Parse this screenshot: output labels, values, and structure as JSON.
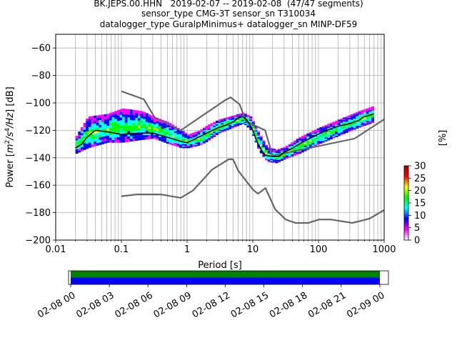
{
  "figure": {
    "title_lines": [
      "BK.JEPS.00.HHN   2019-02-07 -- 2019-02-08  (47/47 segments)",
      "sensor_type CMG-3T sensor_sn T310034",
      "datalogger_type GuralpMinimus+ datalogger_sn MINP-DF59"
    ]
  },
  "chart_data": [
    {
      "type": "heatmap",
      "xlabel": "Period [s]",
      "ylabel_parts": [
        "Power [",
        "m",
        "2",
        "/s",
        "4",
        "/Hz",
        "] [dB]"
      ],
      "xscale": "log",
      "xlim": [
        0.01,
        1000
      ],
      "ylim": [
        -200,
        -50
      ],
      "x_ticks": [
        {
          "v": 0.01,
          "label": "0.01"
        },
        {
          "v": 0.1,
          "label": "0.1"
        },
        {
          "v": 1,
          "label": "1"
        },
        {
          "v": 10,
          "label": "10"
        },
        {
          "v": 100,
          "label": "100"
        },
        {
          "v": 1000,
          "label": "1000"
        }
      ],
      "y_ticks": [
        {
          "v": -60,
          "label": "−60"
        },
        {
          "v": -80,
          "label": "−80"
        },
        {
          "v": -100,
          "label": "−100"
        },
        {
          "v": -120,
          "label": "−120"
        },
        {
          "v": -140,
          "label": "−140"
        },
        {
          "v": -160,
          "label": "−160"
        },
        {
          "v": -180,
          "label": "−180"
        },
        {
          "v": -200,
          "label": "−200"
        }
      ],
      "grid": true,
      "noise_models": [
        {
          "color": "#666666",
          "points": [
            [
              0.1,
              -91.5
            ],
            [
              0.22,
              -97.4
            ],
            [
              0.32,
              -110.5
            ],
            [
              0.8,
              -120.0
            ],
            [
              3.8,
              -98.0
            ],
            [
              4.6,
              -96.0
            ],
            [
              6.3,
              -101.0
            ],
            [
              7.9,
              -113.5
            ],
            [
              15.4,
              -120.0
            ],
            [
              20,
              -138.5
            ],
            [
              354.8,
              -126.0
            ],
            [
              1000,
              -112.0
            ]
          ]
        },
        {
          "color": "#666666",
          "points": [
            [
              0.1,
              -168.0
            ],
            [
              0.17,
              -166.7
            ],
            [
              0.4,
              -166.7
            ],
            [
              0.8,
              -169.2
            ],
            [
              1.24,
              -163.7
            ],
            [
              2.4,
              -148.6
            ],
            [
              4.3,
              -141.1
            ],
            [
              5.0,
              -141.1
            ],
            [
              6.0,
              -149.4
            ],
            [
              10.0,
              -163.1
            ],
            [
              12.0,
              -166.2
            ],
            [
              15.6,
              -162.1
            ],
            [
              21.9,
              -177.5
            ],
            [
              31.6,
              -185.0
            ],
            [
              45.0,
              -187.5
            ],
            [
              70.0,
              -187.5
            ],
            [
              101.0,
              -185.0
            ],
            [
              154.0,
              -185.0
            ],
            [
              328.0,
              -187.5
            ],
            [
              600.0,
              -184.4
            ],
            [
              1000.0,
              -178.0
            ]
          ]
        }
      ],
      "mean_curve": {
        "color": "#000000",
        "points": [
          [
            0.02,
            -133
          ],
          [
            0.025,
            -130
          ],
          [
            0.03,
            -125
          ],
          [
            0.04,
            -120
          ],
          [
            0.06,
            -121
          ],
          [
            0.1,
            -123
          ],
          [
            0.2,
            -122
          ],
          [
            0.3,
            -122
          ],
          [
            0.5,
            -125
          ],
          [
            0.8,
            -128
          ],
          [
            1.0,
            -129
          ],
          [
            1.5,
            -125
          ],
          [
            2.0,
            -122
          ],
          [
            3.0,
            -118
          ],
          [
            4.0,
            -116
          ],
          [
            5.0,
            -114
          ],
          [
            6.0,
            -111
          ],
          [
            7.0,
            -110
          ],
          [
            8.0,
            -112
          ],
          [
            9.0,
            -116
          ],
          [
            10.0,
            -120
          ],
          [
            12.0,
            -130
          ],
          [
            15.0,
            -138
          ],
          [
            20.0,
            -139
          ],
          [
            25.0,
            -139
          ],
          [
            30.0,
            -136
          ],
          [
            40.0,
            -133
          ],
          [
            60.0,
            -128
          ],
          [
            80.0,
            -125
          ],
          [
            120.0,
            -121
          ],
          [
            200.0,
            -117
          ],
          [
            300.0,
            -115
          ],
          [
            400.0,
            -113
          ],
          [
            500.0,
            -110
          ],
          [
            700.0,
            -108
          ]
        ]
      },
      "density_band": [
        {
          "x": 0.02,
          "lo": -137,
          "hi": -124
        },
        {
          "x": 0.03,
          "lo": -133,
          "hi": -110
        },
        {
          "x": 0.06,
          "lo": -129,
          "hi": -108
        },
        {
          "x": 0.1,
          "lo": -129,
          "hi": -104
        },
        {
          "x": 0.2,
          "lo": -127,
          "hi": -106
        },
        {
          "x": 0.3,
          "lo": -126,
          "hi": -110
        },
        {
          "x": 0.5,
          "lo": -130,
          "hi": -114
        },
        {
          "x": 0.8,
          "lo": -133,
          "hi": -120
        },
        {
          "x": 1.0,
          "lo": -133,
          "hi": -123
        },
        {
          "x": 1.5,
          "lo": -131,
          "hi": -120
        },
        {
          "x": 2.0,
          "lo": -128,
          "hi": -116
        },
        {
          "x": 3.0,
          "lo": -122,
          "hi": -112
        },
        {
          "x": 5.0,
          "lo": -118,
          "hi": -109
        },
        {
          "x": 7.0,
          "lo": -115,
          "hi": -107
        },
        {
          "x": 9.0,
          "lo": -120,
          "hi": -110
        },
        {
          "x": 12.0,
          "lo": -135,
          "hi": -122
        },
        {
          "x": 16.0,
          "lo": -143,
          "hi": -132
        },
        {
          "x": 22.0,
          "lo": -144,
          "hi": -134
        },
        {
          "x": 30.0,
          "lo": -141,
          "hi": -132
        },
        {
          "x": 50.0,
          "lo": -137,
          "hi": -125
        },
        {
          "x": 100.0,
          "lo": -130,
          "hi": -118
        },
        {
          "x": 200.0,
          "lo": -124,
          "hi": -112
        },
        {
          "x": 400.0,
          "lo": -118,
          "hi": -106
        },
        {
          "x": 700.0,
          "lo": -114,
          "hi": -102
        }
      ],
      "colorbar": {
        "label": "[%]",
        "range": [
          0,
          30
        ],
        "ticks": [
          {
            "v": 0,
            "label": "0"
          },
          {
            "v": 5,
            "label": "5"
          },
          {
            "v": 10,
            "label": "10"
          },
          {
            "v": 15,
            "label": "15"
          },
          {
            "v": 20,
            "label": "20"
          },
          {
            "v": 25,
            "label": "25"
          },
          {
            "v": 30,
            "label": "30"
          }
        ],
        "colors": [
          "#ffffff",
          "#ff00ff",
          "#0000ff",
          "#00ffff",
          "#00ff00",
          "#ffff00",
          "#ff0000",
          "#990000"
        ]
      }
    },
    {
      "type": "bar",
      "role": "data-coverage",
      "xlim": [
        "2019-02-07T23:50:00",
        "2019-02-09T00:40:00"
      ],
      "coverage": [
        {
          "start": "2019-02-08T00:00:00",
          "end": "2019-02-09T00:00:00",
          "color": "#008000"
        },
        {
          "start": "2019-02-08T00:00:00",
          "end": "2019-02-09T00:00:00",
          "color": "#0000ff"
        }
      ],
      "x_ticks": [
        {
          "t": "2019-02-08T00:00:00",
          "label": "02-08 00"
        },
        {
          "t": "2019-02-08T03:00:00",
          "label": "02-08 03"
        },
        {
          "t": "2019-02-08T06:00:00",
          "label": "02-08 06"
        },
        {
          "t": "2019-02-08T09:00:00",
          "label": "02-08 09"
        },
        {
          "t": "2019-02-08T12:00:00",
          "label": "02-08 12"
        },
        {
          "t": "2019-02-08T15:00:00",
          "label": "02-08 15"
        },
        {
          "t": "2019-02-08T18:00:00",
          "label": "02-08 18"
        },
        {
          "t": "2019-02-08T21:00:00",
          "label": "02-08 21"
        },
        {
          "t": "2019-02-09T00:00:00",
          "label": "02-09 00"
        }
      ]
    }
  ]
}
